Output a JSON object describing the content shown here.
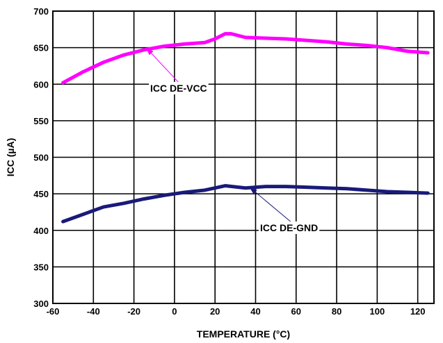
{
  "chart_data": {
    "type": "line",
    "title": "",
    "xlabel": "TEMPERATURE (°C)",
    "ylabel": "ICC (µA)",
    "xlim": [
      -60,
      128
    ],
    "ylim": [
      300,
      700
    ],
    "x_ticks": [
      -60,
      -40,
      -20,
      0,
      20,
      40,
      60,
      80,
      100,
      120
    ],
    "y_ticks": [
      300,
      350,
      400,
      450,
      500,
      550,
      600,
      650,
      700
    ],
    "x_tick_labels": [
      "-60",
      "-40",
      "-20",
      "0",
      "20",
      "40",
      "60",
      "80",
      "100",
      "120"
    ],
    "y_tick_labels": [
      "300",
      "350",
      "400",
      "450",
      "500",
      "550",
      "600",
      "650",
      "700"
    ],
    "grid": true,
    "legend": "none",
    "series": [
      {
        "name": "ICC DE-VCC",
        "color": "#ff00ff",
        "x": [
          -55,
          -45,
          -35,
          -25,
          -15,
          -5,
          5,
          15,
          20,
          25,
          28,
          35,
          45,
          55,
          65,
          75,
          85,
          95,
          105,
          115,
          125
        ],
        "y": [
          602,
          617,
          630,
          640,
          647,
          652,
          655,
          657,
          662,
          669,
          669,
          664,
          663,
          662,
          660,
          658,
          655,
          653,
          650,
          645,
          643
        ]
      },
      {
        "name": "ICC DE-GND",
        "color": "#1a1a7a",
        "x": [
          -55,
          -45,
          -35,
          -25,
          -15,
          -5,
          5,
          15,
          25,
          35,
          45,
          55,
          65,
          75,
          85,
          95,
          105,
          115,
          125
        ],
        "y": [
          412,
          422,
          432,
          437,
          443,
          448,
          452,
          455,
          461,
          458,
          460,
          460,
          459,
          458,
          457,
          455,
          453,
          452,
          451
        ]
      }
    ],
    "annotations": [
      {
        "text": "ICC DE-VCC",
        "series": "ICC DE-VCC",
        "arrow_x": -14,
        "arrow_y": 650
      },
      {
        "text": "ICC DE-GND",
        "series": "ICC DE-GND",
        "arrow_x": 37,
        "arrow_y": 459
      }
    ]
  }
}
